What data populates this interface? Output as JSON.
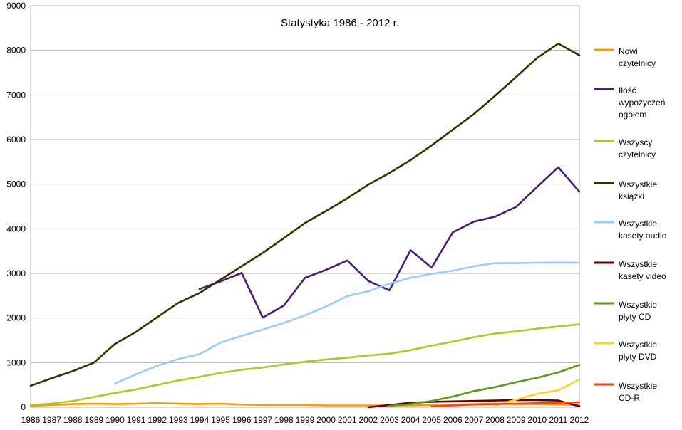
{
  "chart_data": {
    "type": "line",
    "title": "Statystyka 1986 - 2012 r.",
    "xlabel": "",
    "ylabel": "",
    "ylim": [
      0,
      9000
    ],
    "yticks": [
      "0",
      "1000",
      "2000",
      "3000",
      "4000",
      "5000",
      "6000",
      "7000",
      "8000",
      "9000"
    ],
    "grid": true,
    "legend_position": "right",
    "categories": [
      "1986",
      "1987",
      "1988",
      "1989",
      "1990",
      "1991",
      "1992",
      "1993",
      "1994",
      "1995",
      "1996",
      "1997",
      "1998",
      "1999",
      "2000",
      "2001",
      "2002",
      "2003",
      "2004",
      "2005",
      "2006",
      "2007",
      "2008",
      "2009",
      "2010",
      "2011",
      "2012"
    ],
    "series": [
      {
        "name": "Nowi czytelnicy",
        "color": "#ff9900",
        "values": [
          30,
          50,
          70,
          80,
          70,
          80,
          90,
          80,
          70,
          80,
          60,
          50,
          50,
          50,
          40,
          40,
          40,
          40,
          40,
          50,
          60,
          70,
          80,
          70,
          70,
          60,
          50
        ]
      },
      {
        "name": "Ilość wypożyczeń ogółem",
        "color": "#4b1f6f",
        "values": [
          null,
          null,
          null,
          null,
          null,
          null,
          null,
          null,
          2650,
          2820,
          3010,
          2010,
          2280,
          2900,
          3080,
          3290,
          2830,
          2620,
          3520,
          3130,
          3920,
          4160,
          4270,
          4490,
          4940,
          5380,
          4830
        ]
      },
      {
        "name": "Wszyscy czytelnicy",
        "color": "#aacc22",
        "values": [
          50,
          80,
          140,
          230,
          320,
          400,
          500,
          600,
          680,
          770,
          840,
          890,
          960,
          1020,
          1070,
          1110,
          1160,
          1200,
          1280,
          1380,
          1470,
          1570,
          1650,
          1700,
          1760,
          1810,
          1860
        ]
      },
      {
        "name": "Wszystkie książki",
        "color": "#333300",
        "values": [
          480,
          650,
          810,
          1000,
          1420,
          1690,
          2020,
          2340,
          2560,
          2860,
          3160,
          3460,
          3790,
          4130,
          4400,
          4680,
          4990,
          5250,
          5540,
          5870,
          6220,
          6570,
          6980,
          7400,
          7830,
          8150,
          7890
        ]
      },
      {
        "name": "Wszystkie kasety audio",
        "color": "#99ccff",
        "values": [
          null,
          null,
          null,
          null,
          530,
          740,
          930,
          1080,
          1190,
          1450,
          1600,
          1740,
          1890,
          2060,
          2260,
          2490,
          2600,
          2770,
          2900,
          2990,
          3060,
          3160,
          3230,
          3230,
          3240,
          3240,
          3240
        ]
      },
      {
        "name": "Wszystkie kasety video",
        "color": "#660000",
        "values": [
          null,
          null,
          null,
          null,
          null,
          null,
          null,
          null,
          null,
          null,
          null,
          null,
          null,
          null,
          null,
          null,
          0,
          50,
          100,
          120,
          130,
          140,
          150,
          160,
          160,
          150,
          20
        ]
      },
      {
        "name": "Wszystkie płyty CD",
        "color": "#579d1c",
        "values": [
          null,
          null,
          null,
          null,
          null,
          null,
          null,
          null,
          null,
          null,
          null,
          null,
          null,
          null,
          null,
          null,
          null,
          30,
          70,
          140,
          240,
          360,
          450,
          560,
          660,
          780,
          950
        ]
      },
      {
        "name": "Wszystkie płyty DVD",
        "color": "#ffd320",
        "values": [
          null,
          null,
          null,
          null,
          null,
          null,
          null,
          null,
          null,
          null,
          null,
          null,
          null,
          null,
          null,
          null,
          null,
          null,
          null,
          null,
          null,
          null,
          40,
          170,
          300,
          380,
          620
        ]
      },
      {
        "name": "Wszystkie CD-R",
        "color": "#ff420e",
        "values": [
          null,
          null,
          null,
          null,
          null,
          null,
          null,
          null,
          null,
          null,
          null,
          null,
          null,
          null,
          null,
          null,
          null,
          null,
          null,
          20,
          40,
          60,
          70,
          80,
          90,
          100,
          110
        ]
      }
    ],
    "legend_lines": [
      [
        "Nowi",
        "czytelnicy"
      ],
      [
        "Ilość",
        "wypożyczeń",
        "ogółem"
      ],
      [
        "Wszyscy",
        "czytelnicy"
      ],
      [
        "Wszystkie",
        "książki"
      ],
      [
        "Wszystkie",
        "kasety audio"
      ],
      [
        "Wszystkie",
        "kasety video"
      ],
      [
        "Wszystkie",
        "płyty CD"
      ],
      [
        "Wszystkie",
        "płyty DVD"
      ],
      [
        "Wszystkie",
        "CD-R"
      ]
    ]
  }
}
